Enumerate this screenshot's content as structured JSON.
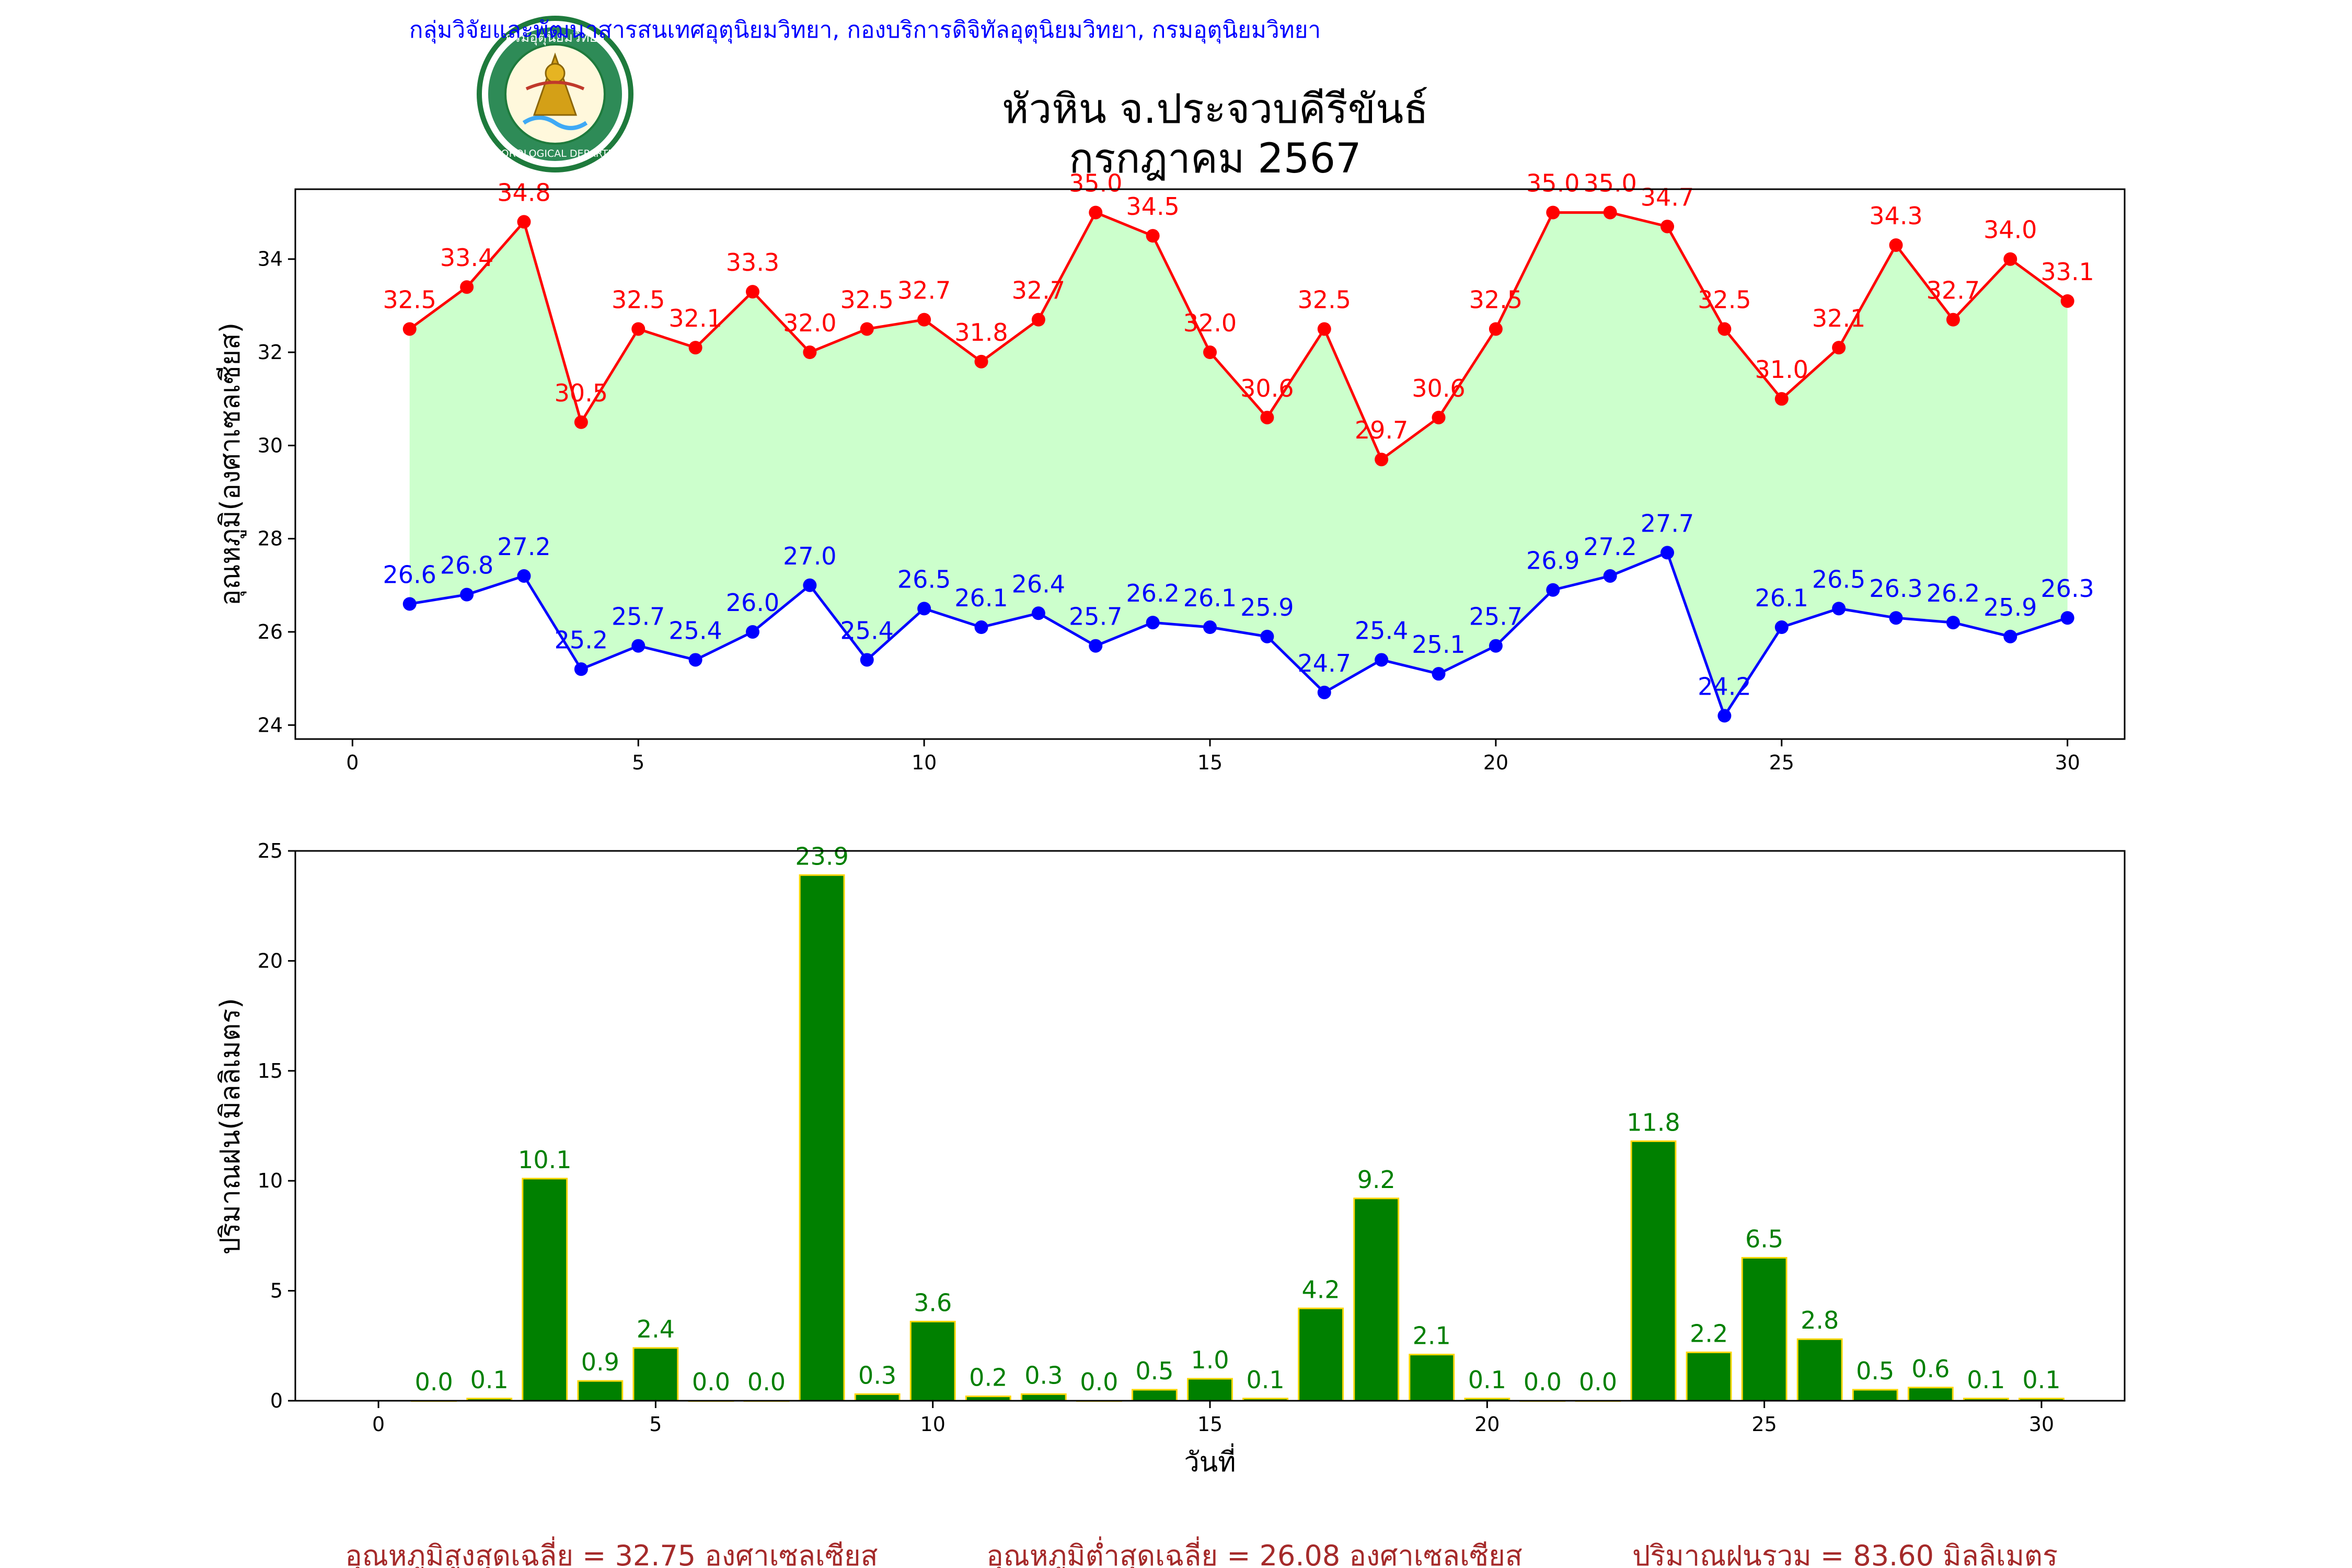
{
  "header": {
    "org_line": "กลุ่มวิจัยและพัฒนาสารสนเทศอุตุนิยมวิทยา, กองบริการดิจิทัลอุตุนิยมวิทยา, กรมอุตุนิยมวิทยา",
    "logo_text_top": "กรมอุตุนิยมวิทยา",
    "logo_text_bottom": "METEOROLOGICAL DEPARTMENT"
  },
  "title": {
    "line1": "หัวหิน จ.ประจวบคีรีขันธ์",
    "line2": "กรกฎาคม 2567"
  },
  "colors": {
    "tmax": "#ff0000",
    "tmin": "#0000ff",
    "fill": "#ccffcc",
    "bar": "#008000",
    "bar_edge": "#ffd700",
    "bar_label": "#008000",
    "footer": "#a52a2a"
  },
  "chart_data": [
    {
      "type": "line",
      "ylabel": "อุณหภูมิ(องศาเซลเซียส)",
      "xlim": [
        -1,
        31
      ],
      "ylim": [
        23.7,
        35.5
      ],
      "xticks": [
        0,
        5,
        10,
        15,
        20,
        25,
        30
      ],
      "yticks": [
        24,
        26,
        28,
        30,
        32,
        34
      ],
      "x": [
        1,
        2,
        3,
        4,
        5,
        6,
        7,
        8,
        9,
        10,
        11,
        12,
        13,
        14,
        15,
        16,
        17,
        18,
        19,
        20,
        21,
        22,
        23,
        24,
        25,
        26,
        27,
        28,
        29,
        30
      ],
      "fill_between": true,
      "series": [
        {
          "key": "tmax",
          "values": [
            32.5,
            33.4,
            34.8,
            30.5,
            32.5,
            32.1,
            33.3,
            32.0,
            32.5,
            32.7,
            31.8,
            32.7,
            35.0,
            34.5,
            32.0,
            30.6,
            32.5,
            29.7,
            30.6,
            32.5,
            35.0,
            35.0,
            34.7,
            32.5,
            31.0,
            32.1,
            34.3,
            32.7,
            34.0,
            33.1
          ]
        },
        {
          "key": "tmin",
          "values": [
            26.6,
            26.8,
            27.2,
            25.2,
            25.7,
            25.4,
            26.0,
            27.0,
            25.4,
            26.5,
            26.1,
            26.4,
            25.7,
            26.2,
            26.1,
            25.9,
            24.7,
            25.4,
            25.1,
            25.7,
            26.9,
            27.2,
            27.7,
            24.2,
            26.1,
            26.5,
            26.3,
            26.2,
            25.9,
            26.3
          ]
        }
      ]
    },
    {
      "type": "bar",
      "ylabel": "ปริมาณฝน(มิลลิเมตร)",
      "xlabel": "วันที่",
      "xlim": [
        -1.5,
        31.5
      ],
      "ylim": [
        0,
        25
      ],
      "xticks": [
        0,
        5,
        10,
        15,
        20,
        25,
        30
      ],
      "yticks": [
        0,
        5,
        10,
        15,
        20,
        25
      ],
      "categories": [
        1,
        2,
        3,
        4,
        5,
        6,
        7,
        8,
        9,
        10,
        11,
        12,
        13,
        14,
        15,
        16,
        17,
        18,
        19,
        20,
        21,
        22,
        23,
        24,
        25,
        26,
        27,
        28,
        29,
        30
      ],
      "values": [
        0.0,
        0.1,
        10.1,
        0.9,
        2.4,
        0.0,
        0.0,
        23.9,
        0.3,
        3.6,
        0.2,
        0.3,
        0.0,
        0.5,
        1.0,
        0.1,
        4.2,
        9.2,
        2.1,
        0.1,
        0.0,
        0.0,
        11.8,
        2.2,
        6.5,
        2.8,
        0.5,
        0.6,
        0.1,
        0.1
      ]
    }
  ],
  "footer": {
    "avg_max": "อุณหภูมิสูงสุดเฉลี่ย = 32.75 องศาเซลเซียส",
    "avg_min": "อุณหภูมิต่ำสุดเฉลี่ย = 26.08 องศาเซลเซียส",
    "rain_total": "ปริมาณฝนรวม = 83.60 มิลลิเมตร"
  }
}
